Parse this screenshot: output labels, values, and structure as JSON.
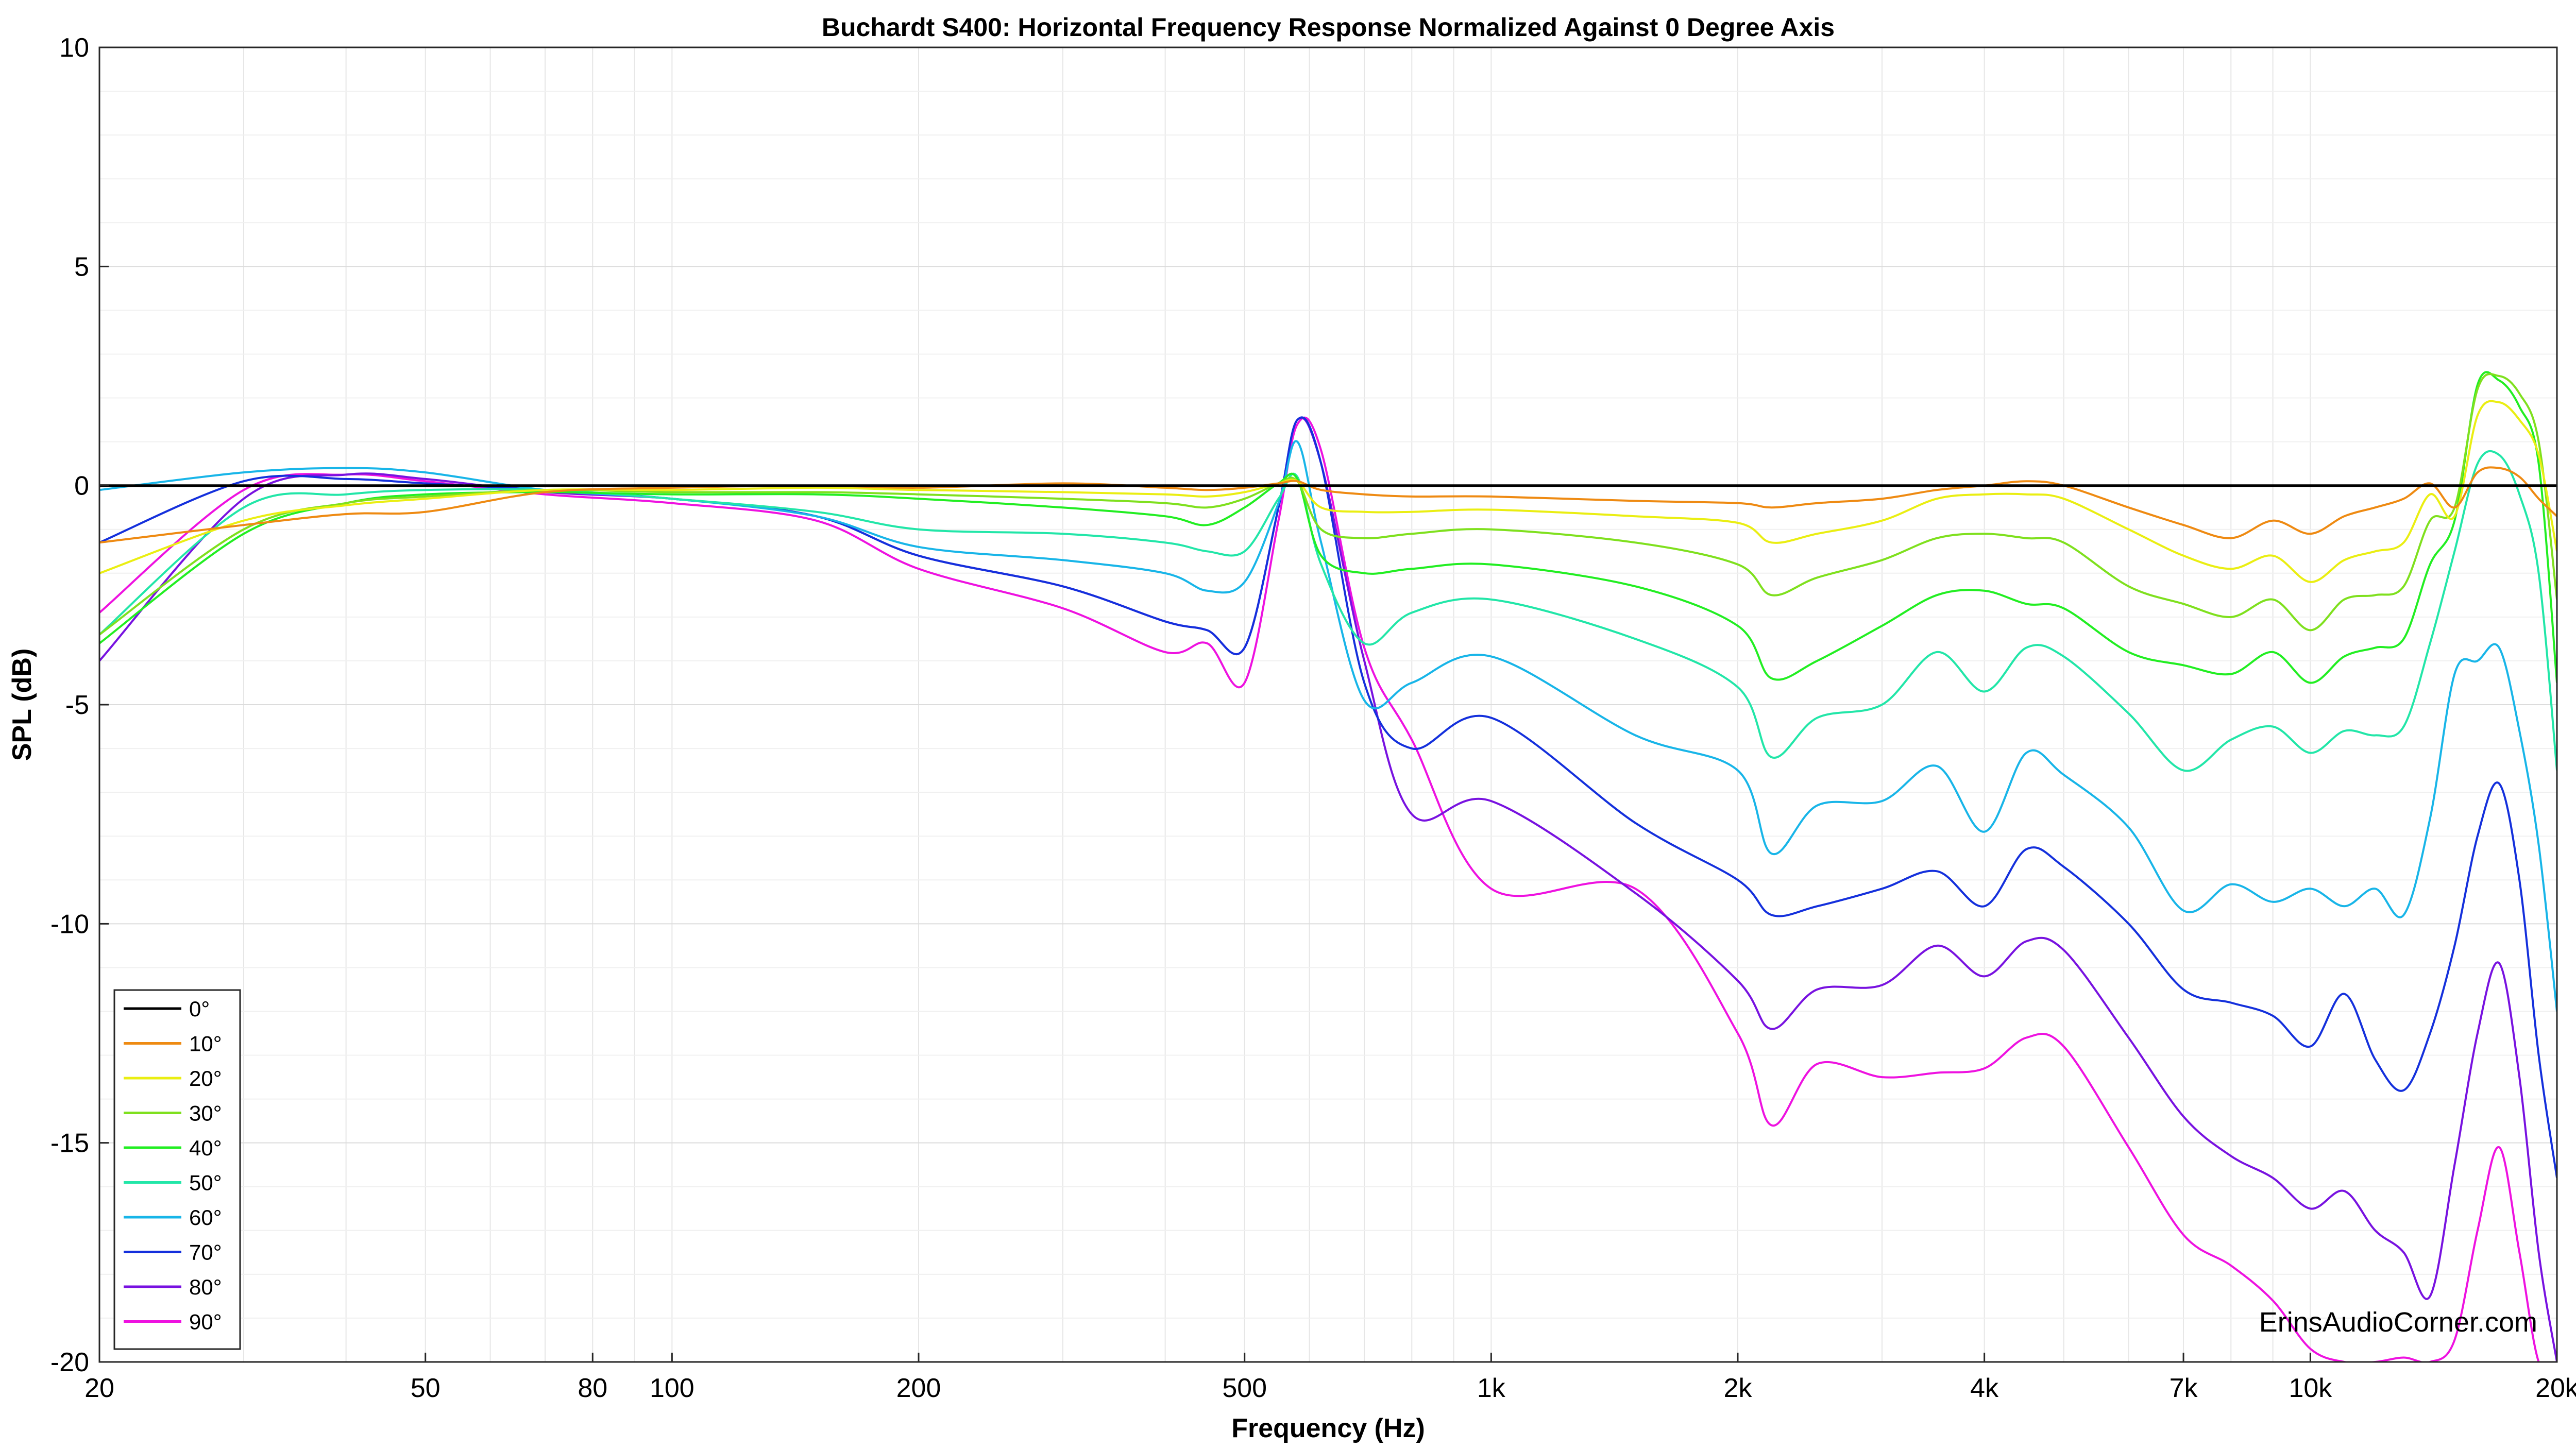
{
  "chart_data": {
    "type": "line",
    "title": "Buchardt S400: Horizontal Frequency Response Normalized Against 0 Degree Axis",
    "xlabel": "Frequency (Hz)",
    "ylabel": "SPL (dB)",
    "x_scale": "log",
    "xlim": [
      20,
      20000
    ],
    "ylim": [
      -20,
      10
    ],
    "grid": true,
    "legend_position": "bottom-left",
    "x_ticks": [
      {
        "value": 20,
        "label": "20"
      },
      {
        "value": 50,
        "label": "50"
      },
      {
        "value": 80,
        "label": "80"
      },
      {
        "value": 100,
        "label": "100"
      },
      {
        "value": 200,
        "label": "200"
      },
      {
        "value": 500,
        "label": "500"
      },
      {
        "value": 1000,
        "label": "1k"
      },
      {
        "value": 2000,
        "label": "2k"
      },
      {
        "value": 4000,
        "label": "4k"
      },
      {
        "value": 7000,
        "label": "7k"
      },
      {
        "value": 10000,
        "label": "10k"
      },
      {
        "value": 20000,
        "label": "20k"
      }
    ],
    "y_ticks": [
      {
        "value": 10,
        "label": "10"
      },
      {
        "value": 5,
        "label": "5"
      },
      {
        "value": 0,
        "label": "0"
      },
      {
        "value": -5,
        "label": "-5"
      },
      {
        "value": -10,
        "label": "-10"
      },
      {
        "value": -15,
        "label": "-15"
      },
      {
        "value": -20,
        "label": "-20"
      }
    ],
    "x": [
      20,
      30,
      40,
      50,
      70,
      100,
      150,
      200,
      300,
      400,
      450,
      500,
      550,
      580,
      620,
      700,
      800,
      1000,
      1500,
      2000,
      2200,
      2500,
      3000,
      3500,
      4000,
      4500,
      5000,
      6000,
      7000,
      8000,
      9000,
      10000,
      11000,
      12000,
      13000,
      14000,
      15000,
      16000,
      17000,
      18000,
      19000,
      20000
    ],
    "series": [
      {
        "name": "0°",
        "color": "#000000",
        "values": [
          0,
          0,
          0,
          0,
          0,
          0,
          0,
          0,
          0,
          0,
          0,
          0,
          0,
          0,
          0,
          0,
          0,
          0,
          0,
          0,
          0,
          0,
          0,
          0,
          0,
          0,
          0,
          0,
          0,
          0,
          0,
          0,
          0,
          0,
          0,
          0,
          0,
          0,
          0,
          0,
          0,
          0
        ]
      },
      {
        "name": "10°",
        "color": "#ee8a12",
        "values": [
          -1.3,
          -0.9,
          -0.65,
          -0.6,
          -0.15,
          -0.05,
          0,
          -0.05,
          0.05,
          -0.05,
          -0.1,
          -0.05,
          0.05,
          0.1,
          -0.1,
          -0.2,
          -0.25,
          -0.25,
          -0.35,
          -0.4,
          -0.5,
          -0.4,
          -0.3,
          -0.1,
          0,
          0.1,
          0,
          -0.5,
          -0.9,
          -1.2,
          -0.8,
          -1.1,
          -0.7,
          -0.5,
          -0.3,
          0.05,
          -0.5,
          0.3,
          0.4,
          0.2,
          -0.3,
          -0.7
        ]
      },
      {
        "name": "20°",
        "color": "#eaee12",
        "values": [
          -2.0,
          -0.8,
          -0.45,
          -0.3,
          -0.1,
          -0.1,
          -0.05,
          -0.1,
          -0.15,
          -0.2,
          -0.25,
          -0.15,
          0.05,
          0.1,
          -0.5,
          -0.6,
          -0.6,
          -0.55,
          -0.7,
          -0.85,
          -1.3,
          -1.1,
          -0.8,
          -0.3,
          -0.2,
          -0.2,
          -0.3,
          -1.0,
          -1.6,
          -1.9,
          -1.6,
          -2.2,
          -1.7,
          -1.5,
          -1.3,
          -0.2,
          -0.7,
          1.6,
          1.9,
          1.5,
          0.7,
          -1.5
        ]
      },
      {
        "name": "30°",
        "color": "#7fe01e",
        "values": [
          -3.4,
          -1.0,
          -0.4,
          -0.25,
          -0.1,
          -0.15,
          -0.15,
          -0.2,
          -0.3,
          -0.4,
          -0.5,
          -0.3,
          0.05,
          0.1,
          -1.0,
          -1.2,
          -1.1,
          -1.0,
          -1.3,
          -1.8,
          -2.5,
          -2.1,
          -1.7,
          -1.2,
          -1.1,
          -1.2,
          -1.3,
          -2.3,
          -2.7,
          -3.0,
          -2.6,
          -3.3,
          -2.6,
          -2.5,
          -2.3,
          -0.8,
          -0.5,
          2.2,
          2.5,
          2.1,
          1.0,
          -2.6
        ]
      },
      {
        "name": "40°",
        "color": "#22ee22",
        "values": [
          -3.6,
          -1.1,
          -0.4,
          -0.2,
          -0.15,
          -0.2,
          -0.2,
          -0.3,
          -0.5,
          -0.7,
          -0.9,
          -0.5,
          0.05,
          0.15,
          -1.6,
          -2.0,
          -1.9,
          -1.8,
          -2.3,
          -3.2,
          -4.4,
          -4.0,
          -3.2,
          -2.5,
          -2.4,
          -2.7,
          -2.8,
          -3.8,
          -4.1,
          -4.3,
          -3.8,
          -4.5,
          -3.9,
          -3.7,
          -3.5,
          -1.8,
          -0.8,
          2.3,
          2.4,
          1.8,
          0.5,
          -4.5
        ]
      },
      {
        "name": "50°",
        "color": "#22e6a8",
        "values": [
          -3.4,
          -0.5,
          -0.2,
          -0.1,
          -0.1,
          -0.3,
          -0.6,
          -1.0,
          -1.1,
          -1.3,
          -1.5,
          -1.5,
          -0.3,
          0.2,
          -1.8,
          -3.6,
          -2.9,
          -2.6,
          -3.5,
          -4.6,
          -6.2,
          -5.3,
          -5.0,
          -3.8,
          -4.7,
          -3.7,
          -3.9,
          -5.2,
          -6.5,
          -5.8,
          -5.5,
          -6.1,
          -5.6,
          -5.7,
          -5.5,
          -3.6,
          -1.5,
          0.5,
          0.7,
          -0.2,
          -2.0,
          -6.5
        ]
      },
      {
        "name": "60°",
        "color": "#18b5e8",
        "values": [
          -0.1,
          0.3,
          0.4,
          0.3,
          -0.1,
          -0.3,
          -0.7,
          -1.4,
          -1.7,
          -2.0,
          -2.4,
          -2.2,
          -0.4,
          1.0,
          -1.3,
          -4.9,
          -4.5,
          -3.9,
          -5.7,
          -6.5,
          -8.4,
          -7.3,
          -7.2,
          -6.4,
          -7.9,
          -6.1,
          -6.6,
          -7.8,
          -9.7,
          -9.1,
          -9.5,
          -9.2,
          -9.6,
          -9.2,
          -9.8,
          -7.6,
          -4.3,
          -4.0,
          -3.7,
          -5.6,
          -8.2,
          -12.0
        ]
      },
      {
        "name": "70°",
        "color": "#1430dc",
        "values": [
          -1.3,
          0.1,
          0.15,
          0.05,
          -0.1,
          -0.3,
          -0.7,
          -1.6,
          -2.3,
          -3.1,
          -3.3,
          -3.7,
          -0.5,
          1.5,
          0.5,
          -4.5,
          -6.0,
          -5.3,
          -7.7,
          -9.0,
          -9.8,
          -9.6,
          -9.2,
          -8.8,
          -9.6,
          -8.3,
          -8.7,
          -10.0,
          -11.5,
          -11.8,
          -12.1,
          -12.8,
          -11.6,
          -13.1,
          -13.8,
          -12.5,
          -10.5,
          -8.0,
          -6.8,
          -9.0,
          -13.0,
          -15.8
        ]
      },
      {
        "name": "80°",
        "color": "#7812e0",
        "values": [
          -4.0,
          -0.3,
          0.25,
          0.15,
          -0.15,
          -0.3,
          -0.7,
          -1.6,
          -2.3,
          -3.1,
          -3.3,
          -3.7,
          -0.5,
          1.5,
          0.5,
          -4.0,
          -7.5,
          -7.2,
          -9.3,
          -11.3,
          -12.4,
          -11.5,
          -11.4,
          -10.5,
          -11.2,
          -10.4,
          -10.6,
          -12.6,
          -14.4,
          -15.3,
          -15.8,
          -16.5,
          -16.1,
          -17.0,
          -17.5,
          -18.5,
          -15.5,
          -12.5,
          -10.9,
          -13.5,
          -17.5,
          -20.0
        ]
      },
      {
        "name": "90°",
        "color": "#ee12e0",
        "values": [
          -2.9,
          -0.1,
          0.25,
          0.1,
          -0.2,
          -0.4,
          -0.8,
          -1.9,
          -2.8,
          -3.8,
          -3.6,
          -4.5,
          -0.8,
          1.4,
          0.8,
          -3.7,
          -5.8,
          -9.2,
          -9.2,
          -12.5,
          -14.6,
          -13.2,
          -13.5,
          -13.4,
          -13.3,
          -12.6,
          -12.8,
          -15.1,
          -17.1,
          -17.8,
          -18.6,
          -19.7,
          -20.0,
          -20.0,
          -19.9,
          -20.0,
          -19.5,
          -17.0,
          -15.1,
          -17.5,
          -20.0,
          -20.0
        ]
      }
    ],
    "watermark": "ErinsAudioCorner.com"
  }
}
